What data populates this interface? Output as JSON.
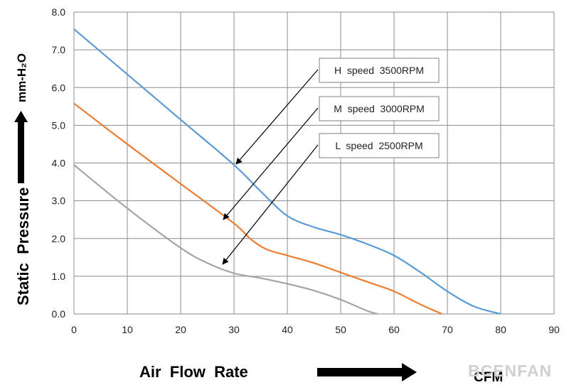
{
  "chart_data": {
    "type": "line",
    "xlabel": "Air  Flow  Rate",
    "xunit": "CFM",
    "ylabel": "Static  Pressure",
    "yunit": "mm-H₂O",
    "xlim": [
      0,
      90
    ],
    "ylim": [
      0,
      8
    ],
    "xticks": [
      "0",
      "10",
      "20",
      "30",
      "40",
      "50",
      "60",
      "70",
      "80",
      "90"
    ],
    "yticks": [
      "0.0",
      "1.0",
      "2.0",
      "3.0",
      "4.0",
      "5.0",
      "6.0",
      "7.0",
      "8.0"
    ],
    "grid": true,
    "series": [
      {
        "name": "H  speed  3500RPM",
        "color": "#5b9bd5",
        "points": [
          [
            0,
            7.55
          ],
          [
            10,
            6.35
          ],
          [
            20,
            5.15
          ],
          [
            30,
            3.95
          ],
          [
            35,
            3.25
          ],
          [
            40,
            2.6
          ],
          [
            45,
            2.3
          ],
          [
            50,
            2.1
          ],
          [
            55,
            1.85
          ],
          [
            60,
            1.55
          ],
          [
            65,
            1.1
          ],
          [
            70,
            0.6
          ],
          [
            75,
            0.2
          ],
          [
            80,
            0.0
          ]
        ]
      },
      {
        "name": "M  speed  3000RPM",
        "color": "#ed7d31",
        "points": [
          [
            0,
            5.58
          ],
          [
            10,
            4.5
          ],
          [
            20,
            3.45
          ],
          [
            30,
            2.4
          ],
          [
            33,
            2.0
          ],
          [
            36,
            1.72
          ],
          [
            40,
            1.55
          ],
          [
            45,
            1.35
          ],
          [
            50,
            1.1
          ],
          [
            55,
            0.85
          ],
          [
            60,
            0.6
          ],
          [
            65,
            0.25
          ],
          [
            69,
            0.0
          ]
        ]
      },
      {
        "name": "L  speed  2500RPM",
        "color": "#a5a5a5",
        "points": [
          [
            0,
            3.95
          ],
          [
            10,
            2.8
          ],
          [
            20,
            1.75
          ],
          [
            25,
            1.35
          ],
          [
            30,
            1.08
          ],
          [
            35,
            0.95
          ],
          [
            40,
            0.8
          ],
          [
            45,
            0.62
          ],
          [
            50,
            0.38
          ],
          [
            55,
            0.08
          ],
          [
            57,
            0.0
          ]
        ]
      }
    ],
    "annotations": [
      {
        "label": "H  speed  3500RPM",
        "points_to": [
          30,
          3.95
        ]
      },
      {
        "label": "M  speed  3000RPM",
        "points_to": [
          28,
          2.5
        ]
      },
      {
        "label": "L  speed  2500RPM",
        "points_to": [
          28,
          1.3
        ]
      }
    ],
    "watermark": "BCENFAN"
  }
}
